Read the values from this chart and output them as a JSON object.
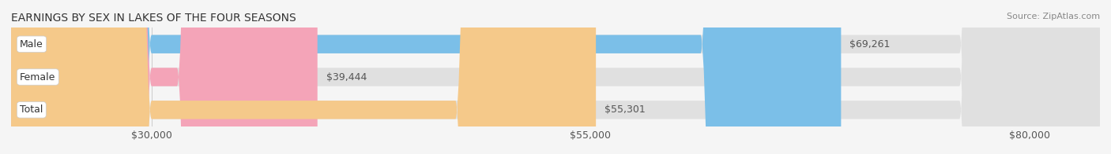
{
  "title": "EARNINGS BY SEX IN LAKES OF THE FOUR SEASONS",
  "source": "Source: ZipAtlas.com",
  "categories": [
    "Male",
    "Female",
    "Total"
  ],
  "values": [
    69261,
    39444,
    55301
  ],
  "bar_colors": [
    "#7bbfe8",
    "#f4a4b8",
    "#f5c98a"
  ],
  "bar_edge_colors": [
    "#a8d4f0",
    "#f9c4d0",
    "#fad9a8"
  ],
  "value_labels": [
    "$69,261",
    "$39,444",
    "$55,301"
  ],
  "xlim_min": 22000,
  "xlim_max": 84000,
  "xticks": [
    30000,
    55000,
    80000
  ],
  "xtick_labels": [
    "$30,000",
    "$55,000",
    "$80,000"
  ],
  "background_color": "#f5f5f5",
  "bar_bg_color": "#e8e8e8",
  "title_fontsize": 10,
  "source_fontsize": 8,
  "label_fontsize": 9,
  "value_fontsize": 9,
  "bar_height": 0.55
}
